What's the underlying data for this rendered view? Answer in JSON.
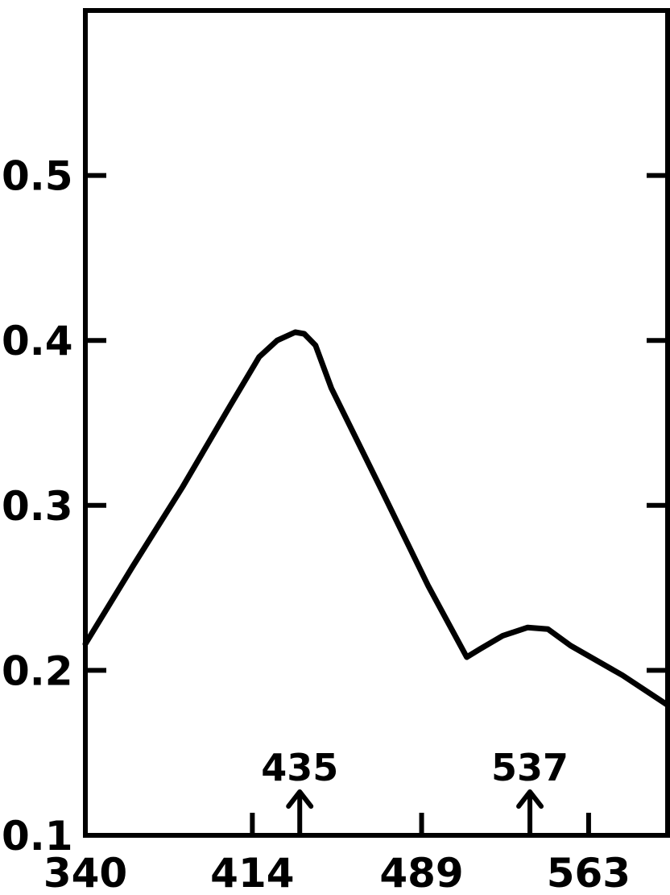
{
  "chart_data": {
    "type": "line",
    "title": "",
    "xlabel": "",
    "ylabel": "",
    "xlim": [
      340,
      598
    ],
    "ylim": [
      0.1,
      0.6
    ],
    "grid": false,
    "x_ticks": [
      340,
      414,
      489,
      563
    ],
    "x_tick_labels": [
      "340",
      "414",
      "489",
      "563"
    ],
    "y_ticks": [
      0.1,
      0.2,
      0.3,
      0.4,
      0.5
    ],
    "y_tick_labels": [
      "0.1",
      "0.2",
      "0.3",
      "0.4",
      "0.5"
    ],
    "series": [
      {
        "x": [
          340,
          361,
          383,
          404,
          417,
          425,
          433,
          437,
          442,
          449,
          471,
          492,
          509,
          515,
          525,
          536,
          545,
          555,
          578,
          598
        ],
        "y": [
          0.216,
          0.263,
          0.311,
          0.36,
          0.39,
          0.4,
          0.405,
          0.404,
          0.397,
          0.371,
          0.31,
          0.251,
          0.208,
          0.213,
          0.221,
          0.226,
          0.225,
          0.215,
          0.197,
          0.179
        ]
      }
    ],
    "annotations": [
      {
        "text": "435",
        "x": 435
      },
      {
        "text": "537",
        "x": 537
      }
    ]
  }
}
